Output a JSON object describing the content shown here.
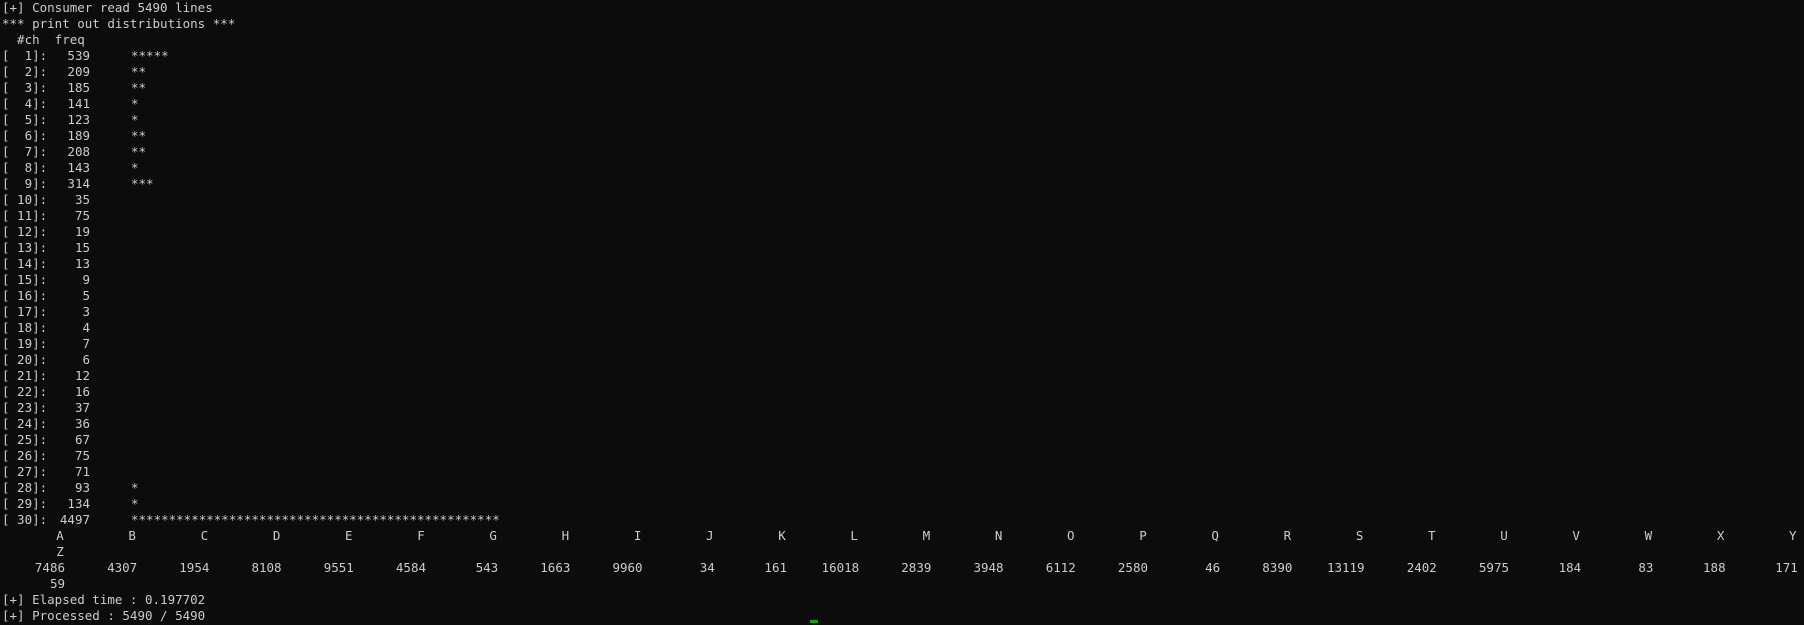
{
  "header": {
    "consumer_line": "[+] Consumer read 5490 lines",
    "distribution_title": "*** print out distributions ***",
    "column_header": "  #ch  freq"
  },
  "length_distribution": [
    {
      "label": "[  1]:",
      "freq": "539",
      "bar": "*****"
    },
    {
      "label": "[  2]:",
      "freq": "209",
      "bar": "**"
    },
    {
      "label": "[  3]:",
      "freq": "185",
      "bar": "**"
    },
    {
      "label": "[  4]:",
      "freq": "141",
      "bar": "*"
    },
    {
      "label": "[  5]:",
      "freq": "123",
      "bar": "*"
    },
    {
      "label": "[  6]:",
      "freq": "189",
      "bar": "**"
    },
    {
      "label": "[  7]:",
      "freq": "208",
      "bar": "**"
    },
    {
      "label": "[  8]:",
      "freq": "143",
      "bar": "*"
    },
    {
      "label": "[  9]:",
      "freq": "314",
      "bar": "***"
    },
    {
      "label": "[ 10]:",
      "freq": "35",
      "bar": ""
    },
    {
      "label": "[ 11]:",
      "freq": "75",
      "bar": ""
    },
    {
      "label": "[ 12]:",
      "freq": "19",
      "bar": ""
    },
    {
      "label": "[ 13]:",
      "freq": "15",
      "bar": ""
    },
    {
      "label": "[ 14]:",
      "freq": "13",
      "bar": ""
    },
    {
      "label": "[ 15]:",
      "freq": "9",
      "bar": ""
    },
    {
      "label": "[ 16]:",
      "freq": "5",
      "bar": ""
    },
    {
      "label": "[ 17]:",
      "freq": "3",
      "bar": ""
    },
    {
      "label": "[ 18]:",
      "freq": "4",
      "bar": ""
    },
    {
      "label": "[ 19]:",
      "freq": "7",
      "bar": ""
    },
    {
      "label": "[ 20]:",
      "freq": "6",
      "bar": ""
    },
    {
      "label": "[ 21]:",
      "freq": "12",
      "bar": ""
    },
    {
      "label": "[ 22]:",
      "freq": "16",
      "bar": ""
    },
    {
      "label": "[ 23]:",
      "freq": "37",
      "bar": ""
    },
    {
      "label": "[ 24]:",
      "freq": "36",
      "bar": ""
    },
    {
      "label": "[ 25]:",
      "freq": "67",
      "bar": ""
    },
    {
      "label": "[ 26]:",
      "freq": "75",
      "bar": ""
    },
    {
      "label": "[ 27]:",
      "freq": "71",
      "bar": ""
    },
    {
      "label": "[ 28]:",
      "freq": "93",
      "bar": "*"
    },
    {
      "label": "[ 29]:",
      "freq": "134",
      "bar": "*"
    },
    {
      "label": "[ 30]:",
      "freq": "4497",
      "bar": "*************************************************"
    }
  ],
  "letter_distribution": {
    "letters": [
      "A",
      "B",
      "C",
      "D",
      "E",
      "F",
      "G",
      "H",
      "I",
      "J",
      "K",
      "L",
      "M",
      "N",
      "O",
      "P",
      "Q",
      "R",
      "S",
      "T",
      "U",
      "V",
      "W",
      "X",
      "Y"
    ],
    "counts": [
      "7486",
      "4307",
      "1954",
      "8108",
      "9551",
      "4584",
      "543",
      "1663",
      "9960",
      "34",
      "161",
      "16018",
      "2839",
      "3948",
      "6112",
      "2580",
      "46",
      "8390",
      "13119",
      "2402",
      "5975",
      "184",
      "83",
      "188",
      "171"
    ],
    "wrapped_letter": "Z",
    "wrapped_count": "59"
  },
  "footer": {
    "elapsed_line": "[+] Elapsed time : 0.197702",
    "processed_line": "[+] Processed : 5490 / 5490"
  },
  "colors": {
    "background": "#0c0c0c",
    "foreground": "#cccccc",
    "cursor": "#13a10e"
  }
}
